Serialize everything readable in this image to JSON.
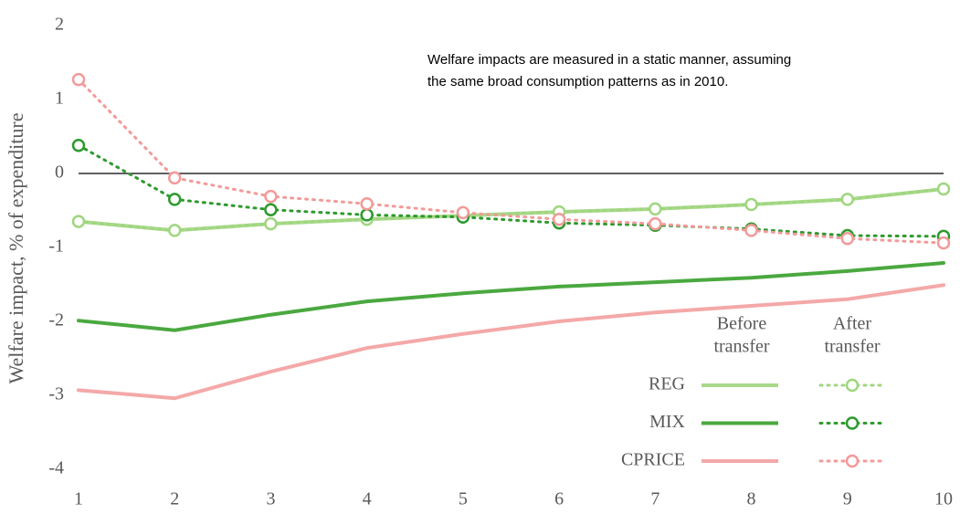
{
  "chart_data": {
    "type": "line",
    "y_label": "Welfare impact, % of expenditure",
    "annotation": [
      "Welfare impacts are measured in a static manner, assuming",
      "the same broad consumption patterns as in 2010."
    ],
    "legend_columns": [
      [
        "Before",
        "transfer"
      ],
      [
        "After",
        "transfer"
      ]
    ],
    "x": [
      1,
      2,
      3,
      4,
      5,
      6,
      7,
      8,
      9,
      10
    ],
    "xlim": [
      1,
      10
    ],
    "ylim": [
      -4,
      2
    ],
    "yticks": [
      2,
      1,
      0,
      -1,
      -2,
      -3,
      -4
    ],
    "series": [
      {
        "name": "REG",
        "color": "#a9d98b",
        "after_color": "#9fd67f",
        "before": [
          -0.65,
          -0.77,
          -0.68,
          -0.62,
          -0.57,
          -0.52,
          -0.48,
          -0.42,
          -0.35,
          -0.21
        ],
        "after": [
          -0.65,
          -0.77,
          -0.68,
          -0.62,
          -0.57,
          -0.52,
          -0.48,
          -0.42,
          -0.35,
          -0.21
        ]
      },
      {
        "name": "MIX",
        "color": "#4aa83f",
        "after_color": "#2e9a2e",
        "before": [
          -1.99,
          -2.12,
          -1.91,
          -1.73,
          -1.62,
          -1.53,
          -1.47,
          -1.41,
          -1.32,
          -1.21
        ],
        "after": [
          0.38,
          -0.35,
          -0.49,
          -0.56,
          -0.59,
          -0.67,
          -0.7,
          -0.75,
          -0.84,
          -0.85
        ]
      },
      {
        "name": "CPRICE",
        "color": "#f4a8a8",
        "after_color": "#f29a9a",
        "before": [
          -2.93,
          -3.04,
          -2.68,
          -2.36,
          -2.17,
          -2.0,
          -1.88,
          -1.79,
          -1.7,
          -1.51
        ],
        "after": [
          1.27,
          -0.06,
          -0.31,
          -0.41,
          -0.53,
          -0.62,
          -0.68,
          -0.77,
          -0.88,
          -0.94
        ]
      }
    ]
  }
}
